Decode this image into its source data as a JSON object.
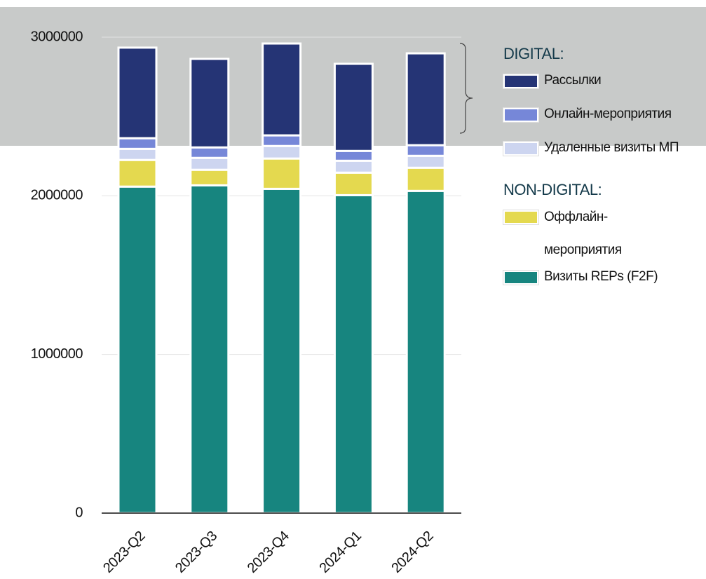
{
  "chart_data": {
    "type": "stacked_bar",
    "categories": [
      "2023-Q2",
      "2023-Q3",
      "2023-Q4",
      "2024-Q1",
      "2024-Q2"
    ],
    "series": [
      {
        "name": "Визиты REPs (F2F)",
        "color": "#17857f",
        "group": "NON-DIGITAL:",
        "values": [
          2058000,
          2066000,
          2044000,
          2004000,
          2031000
        ]
      },
      {
        "name": "Оффлайн-мероприятия",
        "color": "#e4d94f",
        "group": "NON-DIGITAL:",
        "values": [
          168000,
          98000,
          191000,
          142000,
          146000
        ]
      },
      {
        "name": "Удаленные визиты МП",
        "color": "#cdd5f0",
        "group": "DIGITAL:",
        "values": [
          70000,
          75000,
          79000,
          75000,
          75000
        ]
      },
      {
        "name": "Онлайн-мероприятия",
        "color": "#7687d8",
        "group": "DIGITAL:",
        "values": [
          67000,
          66000,
          67000,
          62000,
          67000
        ]
      },
      {
        "name": "Рассылки",
        "color": "#253475",
        "group": "DIGITAL:",
        "values": [
          571000,
          558000,
          579000,
          549000,
          579000
        ]
      }
    ],
    "legend_groups": [
      "DIGITAL:",
      "NON-DIGITAL:"
    ],
    "ylim": [
      0,
      3000000
    ],
    "yticks": [
      0,
      1000000,
      2000000,
      3000000
    ],
    "grid": true
  }
}
